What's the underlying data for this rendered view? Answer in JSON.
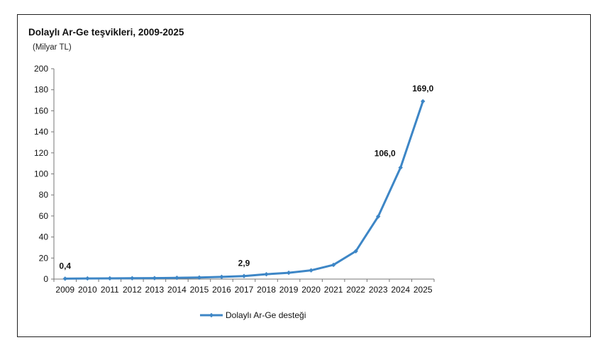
{
  "chart_data": {
    "type": "line",
    "title": "Dolaylı Ar-Ge teşvikleri, 2009-2025",
    "subtitle": "(Milyar TL)",
    "xlabel": "",
    "ylabel": "",
    "categories": [
      "2009",
      "2010",
      "2011",
      "2012",
      "2013",
      "2014",
      "2015",
      "2016",
      "2017",
      "2018",
      "2019",
      "2020",
      "2021",
      "2022",
      "2023",
      "2024",
      "2025"
    ],
    "series": [
      {
        "name": "Dolaylı Ar-Ge desteği",
        "color": "#3d86c6",
        "values": [
          0.4,
          0.6,
          0.7,
          0.8,
          0.9,
          1.2,
          1.5,
          2.1,
          2.9,
          4.6,
          6.0,
          8.3,
          13.5,
          26.5,
          59.5,
          106.0,
          169.0
        ]
      }
    ],
    "data_labels": [
      {
        "category": "2009",
        "text": "0,4"
      },
      {
        "category": "2017",
        "text": "2,9"
      },
      {
        "category": "2024",
        "text": "106,0"
      },
      {
        "category": "2025",
        "text": "169,0"
      }
    ],
    "yticks": [
      0,
      20,
      40,
      60,
      80,
      100,
      120,
      140,
      160,
      180,
      200
    ],
    "ylim": [
      0,
      200
    ],
    "grid": false,
    "legend_position": "bottom"
  }
}
